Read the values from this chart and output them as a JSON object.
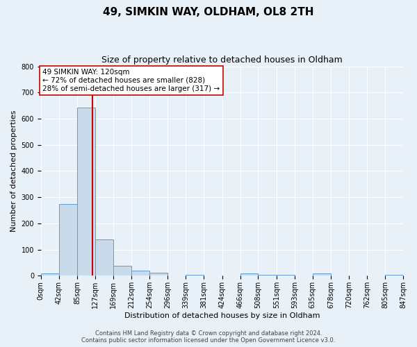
{
  "title": "49, SIMKIN WAY, OLDHAM, OL8 2TH",
  "subtitle": "Size of property relative to detached houses in Oldham",
  "xlabel": "Distribution of detached houses by size in Oldham",
  "ylabel": "Number of detached properties",
  "bin_edges": [
    0,
    42,
    85,
    127,
    169,
    212,
    254,
    296,
    339,
    381,
    424,
    466,
    508,
    551,
    593,
    635,
    678,
    720,
    762,
    805,
    847
  ],
  "bar_heights": [
    8,
    273,
    643,
    140,
    37,
    20,
    13,
    0,
    5,
    0,
    0,
    10,
    5,
    5,
    0,
    8,
    0,
    0,
    0,
    5
  ],
  "bar_color": "#c9daea",
  "bar_edgecolor": "#5b9bd5",
  "vline_x": 120,
  "vline_color": "#cc0000",
  "annotation_line1": "49 SIMKIN WAY: 120sqm",
  "annotation_line2": "← 72% of detached houses are smaller (828)",
  "annotation_line3": "28% of semi-detached houses are larger (317) →",
  "annotation_bbox_edgecolor": "#cc0000",
  "annotation_bbox_facecolor": "#ffffff",
  "ylim": [
    0,
    800
  ],
  "yticks": [
    0,
    100,
    200,
    300,
    400,
    500,
    600,
    700,
    800
  ],
  "tick_labels": [
    "0sqm",
    "42sqm",
    "85sqm",
    "127sqm",
    "169sqm",
    "212sqm",
    "254sqm",
    "296sqm",
    "339sqm",
    "381sqm",
    "424sqm",
    "466sqm",
    "508sqm",
    "551sqm",
    "593sqm",
    "635sqm",
    "678sqm",
    "720sqm",
    "762sqm",
    "805sqm",
    "847sqm"
  ],
  "footer_line1": "Contains HM Land Registry data © Crown copyright and database right 2024.",
  "footer_line2": "Contains public sector information licensed under the Open Government Licence v3.0.",
  "background_color": "#e8f0f8",
  "grid_color": "#ffffff",
  "title_fontsize": 11,
  "subtitle_fontsize": 9,
  "axis_label_fontsize": 8,
  "tick_fontsize": 7,
  "annotation_fontsize": 7.5,
  "footer_fontsize": 6
}
